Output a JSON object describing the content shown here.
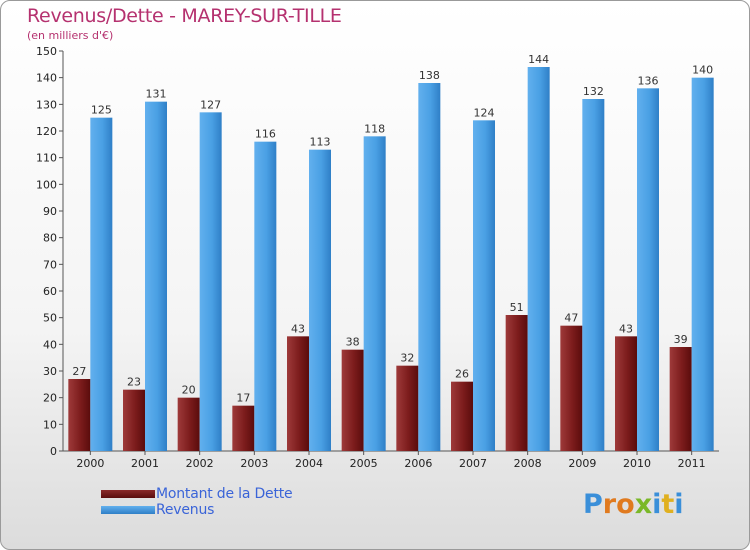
{
  "title": "Revenus/Dette - MAREY-SUR-TILLE",
  "subtitle": "(en milliers d'€)",
  "legend": {
    "debt_label": "Montant de la Dette",
    "revenue_label": "Revenus"
  },
  "logo": {
    "letters": [
      "P",
      "r",
      "o",
      "x",
      "i",
      "t",
      "i"
    ]
  },
  "colors": {
    "title": "#b5316f",
    "debt": "#7a1a1a",
    "revenue": "#3a8fd9",
    "legend_text": "#3a64d8"
  },
  "chart_data": {
    "type": "bar",
    "title": "Revenus/Dette - MAREY-SUR-TILLE",
    "ylabel": "(en milliers d'€)",
    "ylim": [
      0,
      150
    ],
    "yticks": [
      0,
      10,
      20,
      30,
      40,
      50,
      60,
      70,
      80,
      90,
      100,
      110,
      120,
      130,
      140,
      150
    ],
    "grid": false,
    "categories": [
      "2000",
      "2001",
      "2002",
      "2003",
      "2004",
      "2005",
      "2006",
      "2007",
      "2008",
      "2009",
      "2010",
      "2011"
    ],
    "series": [
      {
        "name": "Montant de la Dette",
        "values": [
          27,
          23,
          20,
          17,
          43,
          38,
          32,
          26,
          51,
          47,
          43,
          39
        ]
      },
      {
        "name": "Revenus",
        "values": [
          125,
          131,
          127,
          116,
          113,
          118,
          138,
          124,
          144,
          132,
          136,
          140
        ]
      }
    ]
  }
}
